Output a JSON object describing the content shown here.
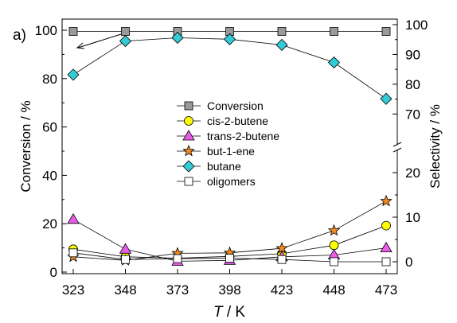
{
  "panel_label": "a)",
  "chart_data": {
    "type": "line",
    "xlabel_italic": "T",
    "xlabel_rest": " / K",
    "ylabel_left": "Conversion / %",
    "ylabel_right": "Selectivity / %",
    "x": [
      323,
      348,
      373,
      398,
      423,
      448,
      473
    ],
    "x_ticks": [
      "323",
      "348",
      "373",
      "398",
      "423",
      "448",
      "473"
    ],
    "xlim": [
      323,
      473
    ],
    "left_axis": {
      "ylim": [
        0,
        100
      ],
      "ticks": [
        "0",
        "20",
        "40",
        "60",
        "80",
        "100"
      ]
    },
    "right_axis_upper": {
      "ylim": [
        65,
        100
      ],
      "ticks": [
        "70",
        "80",
        "90",
        "100"
      ]
    },
    "right_axis_lower": {
      "ylim": [
        -1,
        25
      ],
      "ticks": [
        "0",
        "10",
        "20"
      ]
    },
    "series": [
      {
        "name": "Conversion",
        "axis": "left",
        "marker": "square",
        "color": "#9a9a9a",
        "values": [
          99.5,
          99.5,
          99.5,
          99.5,
          99.5,
          99.5,
          99.5
        ]
      },
      {
        "name": "cis-2-butene",
        "axis": "right-lower",
        "marker": "circle",
        "color": "#ffff00",
        "values": [
          2.8,
          1.1,
          0.8,
          1.2,
          1.8,
          3.7,
          8.1
        ]
      },
      {
        "name": "trans-2-butene",
        "axis": "right-lower",
        "marker": "triangle",
        "color": "#e85ce8",
        "values": [
          9.5,
          2.8,
          0.1,
          0.3,
          1.1,
          1.5,
          3.1
        ]
      },
      {
        "name": "but-1-ene",
        "axis": "right-lower",
        "marker": "star",
        "color": "#f28a1e",
        "values": [
          1.1,
          0.3,
          1.9,
          2.0,
          3.0,
          7.0,
          13.6
        ]
      },
      {
        "name": "butane",
        "axis": "right-upper",
        "marker": "diamond",
        "color": "#33ccd6",
        "values": [
          83.2,
          94.5,
          95.6,
          95.1,
          93.2,
          87.3,
          75.1
        ]
      },
      {
        "name": "oligomers",
        "axis": "right-lower",
        "marker": "square-open",
        "color": "#ffffff",
        "values": [
          2.0,
          0.5,
          0.7,
          0.8,
          0.5,
          0.0,
          0.0
        ]
      }
    ],
    "legend": "center",
    "grid": false
  }
}
